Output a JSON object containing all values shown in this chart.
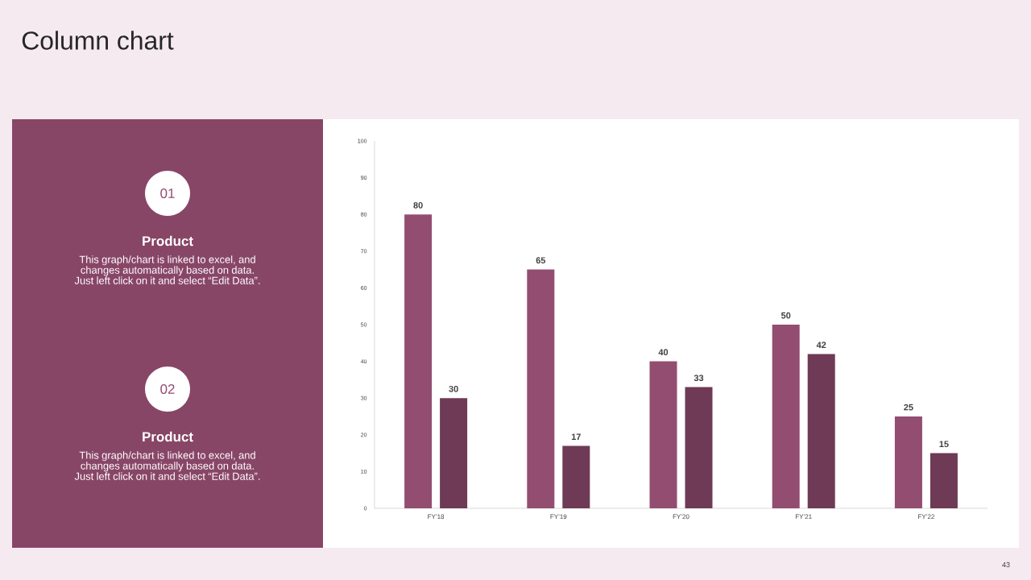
{
  "chart_data": {
    "type": "bar",
    "title": "Column chart",
    "categories": [
      "FY’18",
      "FY’19",
      "FY’20",
      "FY’21",
      "FY’22"
    ],
    "series": [
      {
        "color": "#934d70",
        "values": [
          80,
          65,
          40,
          50,
          25
        ]
      },
      {
        "color": "#6e3a56",
        "values": [
          30,
          17,
          33,
          42,
          15
        ]
      }
    ],
    "ylim": [
      0,
      100
    ],
    "yticks": [
      0,
      10,
      20,
      30,
      40,
      50,
      60,
      70,
      80,
      90,
      100
    ],
    "grid": false,
    "data_labels": true,
    "annotations": [
      "01",
      "Product",
      "This graph/chart is linked to excel, and changes automatically based on data. Just left click on it and select “Edit Data”.",
      "02",
      "Product",
      "This graph/chart is linked to excel, and changes automatically based on data. Just left click on it and select “Edit Data”.",
      "43"
    ]
  }
}
